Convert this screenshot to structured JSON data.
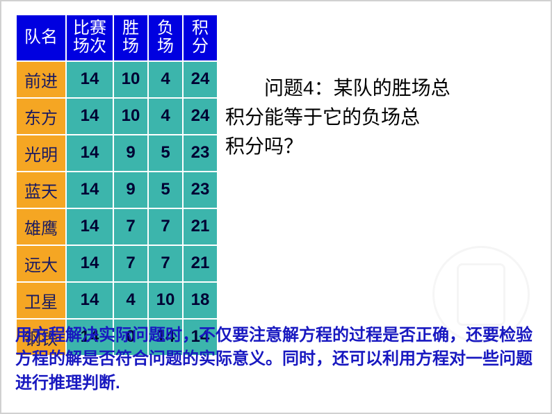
{
  "table": {
    "headers": {
      "team": "队名",
      "games": "比赛\n场次",
      "wins": "胜\n场",
      "losses": "负\n场",
      "points": "积\n分"
    },
    "header_bg": "#0000e0",
    "header_fg": "#ffffff",
    "name_bg": "#f5a623",
    "data_bg": "#3cb5ac",
    "border_color": "#ffffff",
    "font_size_header": 24,
    "font_size_cell": 24,
    "rows": [
      {
        "name": "前进",
        "games": "14",
        "wins": "10",
        "losses": "4",
        "points": "24"
      },
      {
        "name": "东方",
        "games": "14",
        "wins": "10",
        "losses": "4",
        "points": "24"
      },
      {
        "name": "光明",
        "games": "14",
        "wins": "9",
        "losses": "5",
        "points": "23"
      },
      {
        "name": "蓝天",
        "games": "14",
        "wins": "9",
        "losses": "5",
        "points": "23"
      },
      {
        "name": "雄鹰",
        "games": "14",
        "wins": "7",
        "losses": "7",
        "points": "21"
      },
      {
        "name": "远大",
        "games": "14",
        "wins": "7",
        "losses": "7",
        "points": "21"
      },
      {
        "name": "卫星",
        "games": "14",
        "wins": "4",
        "losses": "10",
        "points": "18"
      },
      {
        "name": "钢铁",
        "games": "14",
        "wins": "0",
        "losses": "14",
        "points": "14"
      }
    ]
  },
  "question": {
    "line1": "问题4：某队的胜场总",
    "line2": "积分能等于它的负场总",
    "line3": "积分吗？",
    "color": "#000000",
    "font_size": 28
  },
  "bottom_note": {
    "text": "用方程解决实际问题时，不仅要注意解方程的过程是否正确，还要检验方程的解是否符合问题的实际意义。同时，还可以利用方程对一些问题进行推理判断.",
    "color": "#1818c0",
    "font_size": 24
  }
}
